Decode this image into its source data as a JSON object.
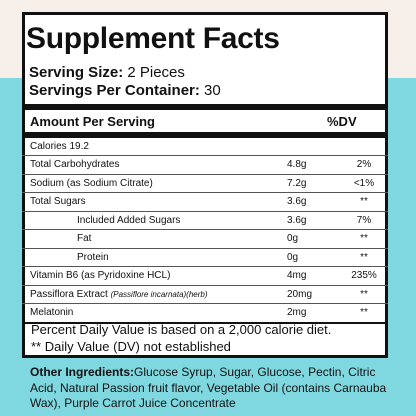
{
  "title": "Supplement Facts",
  "serving_size_label": "Serving Size:",
  "serving_size_value": " 2 Pieces",
  "servings_label": "Servings Per Container:",
  "servings_value": " 30",
  "header_left": "Amount Per Serving",
  "header_right": "%DV",
  "calories": "Calories 19.2",
  "rows": [
    {
      "name": "Total Carbohydrates",
      "amount": "4.8g",
      "dv": "2%"
    },
    {
      "name": "Sodium (as Sodium Citrate)",
      "amount": "7.2g",
      "dv": "<1%"
    },
    {
      "name": "Total Sugars",
      "amount": "3.6g",
      "dv": "**"
    },
    {
      "name": "Included Added Sugars",
      "amount": "3.6g",
      "dv": "7%"
    },
    {
      "name": "Fat",
      "amount": "0g",
      "dv": "**"
    },
    {
      "name": "Protein",
      "amount": "0g",
      "dv": "**"
    },
    {
      "name": "Vitamin B6 (as Pyridoxine HCL)",
      "amount": "4mg",
      "dv": "235%"
    },
    {
      "name": "Passiflora Extract ",
      "note": "(Passiflore incarnata)(herb)",
      "amount": "20mg",
      "dv": "**"
    },
    {
      "name": "Melatonin",
      "amount": "2mg",
      "dv": "**"
    }
  ],
  "footnote_1": "Percent Daily Value is based on a 2,000 calorie diet.",
  "footnote_2": "** Daily Value (DV) not established",
  "other_ingredients_label": "Other Ingredients:",
  "other_ingredients_text": "Glucose Syrup,  Sugar, Glucose, Pectin, Citric Acid, Natural Passion fruit flavor, Vegetable Oil (contains Carnauba Wax), Purple Carrot Juice Concentrate"
}
